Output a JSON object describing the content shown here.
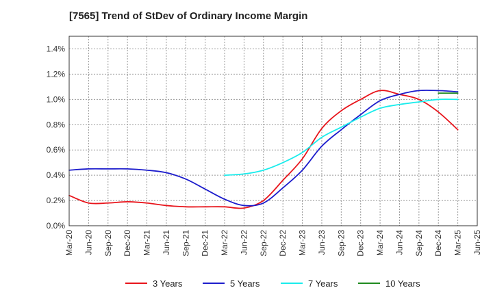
{
  "chart_data": {
    "type": "line",
    "title": "[7565]  Trend of StDev of Ordinary Income Margin",
    "xlabel": "",
    "ylabel": "",
    "x_ticks": [
      "Mar-20",
      "Jun-20",
      "Sep-20",
      "Dec-20",
      "Mar-21",
      "Jun-21",
      "Sep-21",
      "Dec-21",
      "Mar-22",
      "Jun-22",
      "Sep-22",
      "Dec-22",
      "Mar-23",
      "Jun-23",
      "Sep-23",
      "Dec-23",
      "Mar-24",
      "Jun-24",
      "Sep-24",
      "Dec-24",
      "Mar-25",
      "Jun-25"
    ],
    "y_ticks": [
      "0.0%",
      "0.2%",
      "0.4%",
      "0.6%",
      "0.8%",
      "1.0%",
      "1.2%",
      "1.4%"
    ],
    "ylim": [
      0,
      1.5
    ],
    "y_unit": "%",
    "grid": true,
    "legend_position": "bottom",
    "series": [
      {
        "name": "3 Years",
        "color": "#e8141b",
        "x": [
          "Mar-20",
          "Jun-20",
          "Sep-20",
          "Dec-20",
          "Mar-21",
          "Jun-21",
          "Sep-21",
          "Dec-21",
          "Mar-22",
          "Jun-22",
          "Sep-22",
          "Dec-22",
          "Mar-23",
          "Jun-23",
          "Sep-23",
          "Dec-23",
          "Mar-24",
          "Jun-24",
          "Sep-24",
          "Dec-24",
          "Mar-25"
        ],
        "values": [
          0.24,
          0.18,
          0.18,
          0.19,
          0.18,
          0.16,
          0.15,
          0.15,
          0.15,
          0.14,
          0.2,
          0.36,
          0.53,
          0.77,
          0.91,
          1.0,
          1.07,
          1.04,
          1.0,
          0.9,
          0.76
        ]
      },
      {
        "name": "5 Years",
        "color": "#1c1ccc",
        "x": [
          "Mar-20",
          "Jun-20",
          "Sep-20",
          "Dec-20",
          "Mar-21",
          "Jun-21",
          "Sep-21",
          "Dec-21",
          "Mar-22",
          "Jun-22",
          "Sep-22",
          "Dec-22",
          "Mar-23",
          "Jun-23",
          "Sep-23",
          "Dec-23",
          "Mar-24",
          "Jun-24",
          "Sep-24",
          "Dec-24",
          "Mar-25"
        ],
        "values": [
          0.44,
          0.45,
          0.45,
          0.45,
          0.44,
          0.42,
          0.37,
          0.29,
          0.21,
          0.16,
          0.18,
          0.3,
          0.44,
          0.63,
          0.76,
          0.88,
          0.99,
          1.04,
          1.07,
          1.07,
          1.06
        ]
      },
      {
        "name": "7 Years",
        "color": "#1aecec",
        "x": [
          "Mar-22",
          "Jun-22",
          "Sep-22",
          "Dec-22",
          "Mar-23",
          "Jun-23",
          "Sep-23",
          "Dec-23",
          "Mar-24",
          "Jun-24",
          "Sep-24",
          "Dec-24",
          "Mar-25"
        ],
        "values": [
          0.4,
          0.41,
          0.44,
          0.5,
          0.58,
          0.7,
          0.78,
          0.86,
          0.93,
          0.96,
          0.98,
          1.0,
          1.0
        ]
      },
      {
        "name": "10 Years",
        "color": "#1f8a1f",
        "x": [
          "Dec-24",
          "Mar-25"
        ],
        "values": [
          1.05,
          1.05
        ]
      }
    ]
  }
}
